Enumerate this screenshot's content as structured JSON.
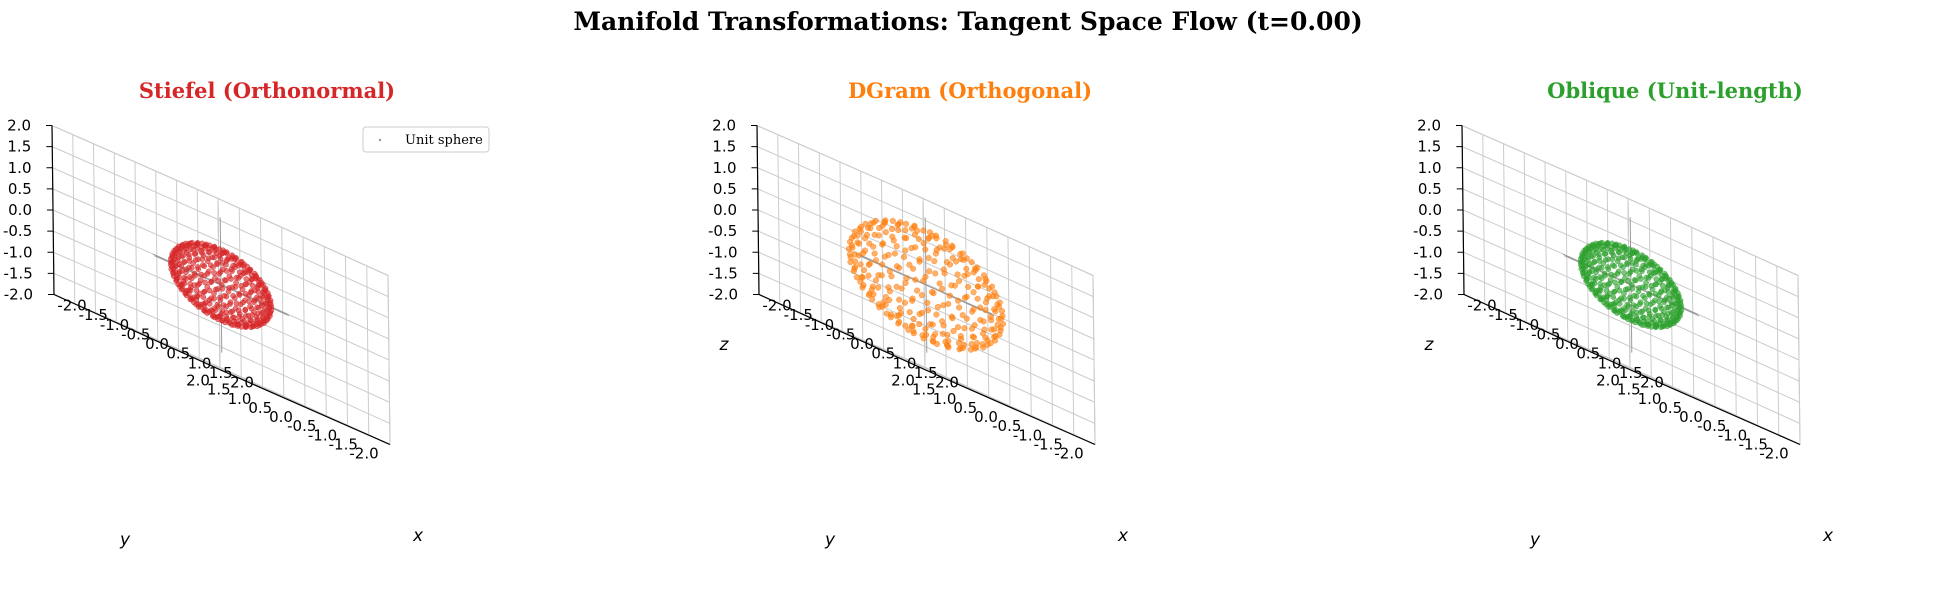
{
  "figure_title": "Manifold Transformations: Tangent Space Flow (t=0.00)",
  "chart_data": [
    {
      "type": "scatter3d",
      "title": "Stiefel (Orthonormal)",
      "title_color": "#d62728",
      "point_color": "#d62728",
      "points": 400,
      "radius": 0.85,
      "xlabel": "x",
      "ylabel": "y",
      "zlabel": "",
      "xlim": [
        -2.0,
        2.0
      ],
      "ylim": [
        -2.0,
        2.0
      ],
      "zlim": [
        -2.0,
        2.0
      ],
      "ticks": [
        "-2.0",
        "-1.5",
        "-1.0",
        "-0.5",
        "0.0",
        "0.5",
        "1.0",
        "1.5",
        "2.0"
      ],
      "legend": {
        "label": "Unit sphere",
        "placement": "upper right"
      },
      "grid": true
    },
    {
      "type": "scatter3d",
      "title": "DGram (Orthogonal)",
      "title_color": "#ff7f0e",
      "point_color": "#ff7f0e",
      "points": 300,
      "radius": 1.3,
      "xlabel": "x",
      "ylabel": "y",
      "zlabel": "z",
      "xlim": [
        -2.0,
        2.0
      ],
      "ylim": [
        -2.0,
        2.0
      ],
      "zlim": [
        -2.0,
        2.0
      ],
      "ticks": [
        "-2.0",
        "-1.5",
        "-1.0",
        "-0.5",
        "0.0",
        "0.5",
        "1.0",
        "1.5",
        "2.0"
      ],
      "grid": true
    },
    {
      "type": "scatter3d",
      "title": "Oblique (Unit-length)",
      "title_color": "#2ca02c",
      "point_color": "#2ca02c",
      "points": 400,
      "radius": 0.85,
      "xlabel": "x",
      "ylabel": "y",
      "zlabel": "z",
      "xlim": [
        -2.0,
        2.0
      ],
      "ylim": [
        -2.0,
        2.0
      ],
      "zlim": [
        -2.0,
        2.0
      ],
      "ticks": [
        "-2.0",
        "-1.5",
        "-1.0",
        "-0.5",
        "0.0",
        "0.5",
        "1.0",
        "1.5",
        "2.0"
      ],
      "grid": true
    }
  ]
}
